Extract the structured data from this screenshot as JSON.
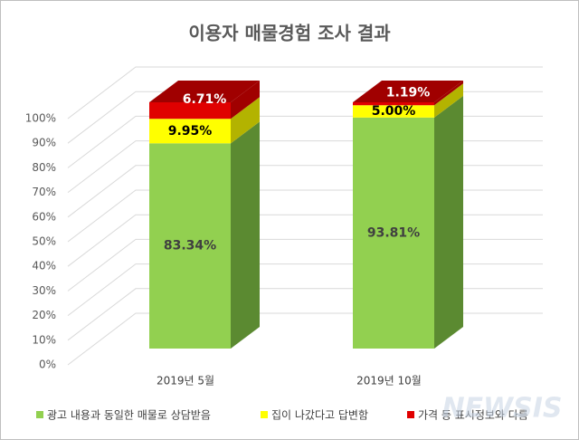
{
  "chart_data": {
    "type": "bar3d-stacked",
    "title": "이용자 매물경험 조사 결과",
    "categories": [
      "2019년 5월",
      "2019년 10월"
    ],
    "series": [
      {
        "name": "광고 내용과 동일한 매물로 상담받음",
        "color": "#92d050",
        "side_color": "#5b8a31",
        "label_color": "#404040",
        "values": [
          83.34,
          93.81
        ],
        "value_labels": [
          "83.34%",
          "93.81%"
        ]
      },
      {
        "name": "집이 나갔다고 답변함",
        "color": "#ffff00",
        "side_color": "#b3b300",
        "label_color": "#000000",
        "values": [
          9.95,
          5.0
        ],
        "value_labels": [
          "9.95%",
          "5.00%"
        ]
      },
      {
        "name": "가격 등 표시정보와 다름",
        "color": "#e00000",
        "side_color": "#a00000",
        "label_color": "#ffffff",
        "values": [
          6.71,
          1.19
        ],
        "value_labels": [
          "6.71%",
          "1.19%"
        ]
      }
    ],
    "ylim": [
      0,
      100
    ],
    "yticks": [
      {
        "value": 0,
        "label": "0%"
      },
      {
        "value": 10,
        "label": "10%"
      },
      {
        "value": 20,
        "label": "20%"
      },
      {
        "value": 30,
        "label": "30%"
      },
      {
        "value": 40,
        "label": "40%"
      },
      {
        "value": 50,
        "label": "50%"
      },
      {
        "value": 60,
        "label": "60%"
      },
      {
        "value": 70,
        "label": "70%"
      },
      {
        "value": 80,
        "label": "80%"
      },
      {
        "value": 90,
        "label": "90%"
      },
      {
        "value": 100,
        "label": "100%"
      }
    ],
    "grid": true,
    "watermark": "NEWSIS"
  }
}
